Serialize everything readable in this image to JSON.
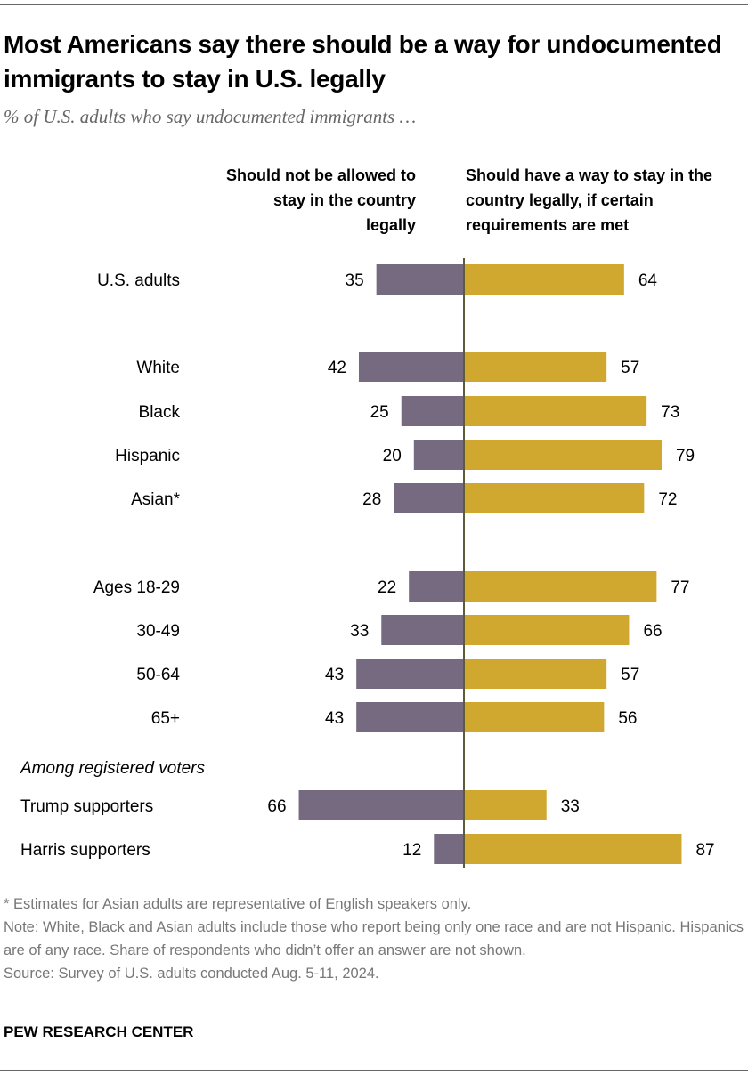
{
  "title": "Most Americans say there should be a way for undocumented immigrants to stay in U.S. legally",
  "subtitle": "% of U.S. adults who say undocumented immigrants …",
  "chart_data": {
    "type": "bar",
    "orientation": "horizontal-diverging",
    "series": [
      {
        "name": "Should not be allowed to stay in the country legally",
        "color": "#756a7f",
        "values": [
          35,
          42,
          25,
          20,
          28,
          22,
          33,
          43,
          43,
          66,
          12
        ]
      },
      {
        "name": "Should have a way to stay in the country legally, if certain requirements are met",
        "color": "#d0a72f",
        "values": [
          64,
          57,
          73,
          79,
          72,
          77,
          66,
          57,
          56,
          33,
          87
        ]
      }
    ],
    "categories": [
      "U.S. adults",
      "White",
      "Black",
      "Hispanic",
      "Asian*",
      "Ages 18-29",
      "30-49",
      "50-64",
      "65+",
      "Trump supporters",
      "Harris supporters"
    ],
    "group_label": "Among registered voters"
  },
  "notes": [
    "* Estimates for Asian adults are representative of English speakers only.",
    "Note: White, Black and Asian adults include those who report being only one race and are not Hispanic. Hispanics are of any race. Share of respondents who didn’t offer an answer are not shown.",
    "Source: Survey of U.S. adults conducted Aug. 5-11, 2024."
  ],
  "brand": "PEW RESEARCH CENTER"
}
